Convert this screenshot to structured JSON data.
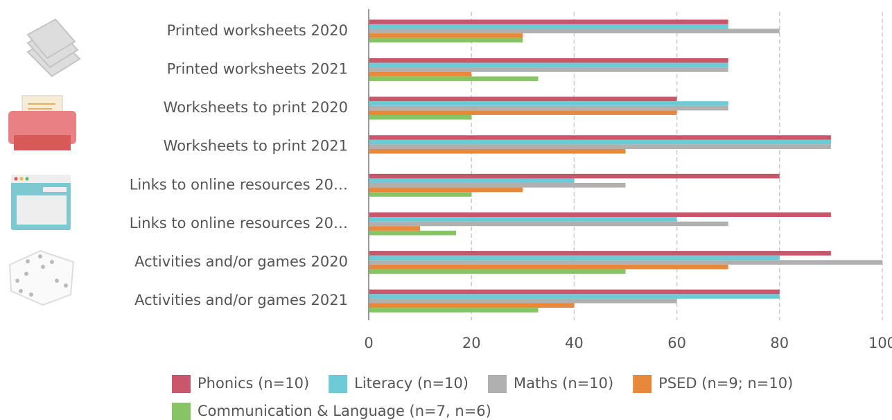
{
  "chart_data": {
    "type": "hbar",
    "categories": [
      "Printed worksheets 2020",
      "Printed worksheets 2021",
      "Worksheets to print 2020",
      "Worksheets to print 2021",
      "Links to online resources 20…",
      "Links to online resources 20…",
      "Activities and/or games 2020",
      "Activities and/or games 2021"
    ],
    "series": [
      {
        "name": "Phonics (n=10)",
        "color": "#c9566b",
        "values": [
          70,
          70,
          60,
          90,
          80,
          90,
          90,
          80
        ]
      },
      {
        "name": "Literacy (n=10)",
        "color": "#6ccbd6",
        "values": [
          70,
          70,
          70,
          90,
          40,
          60,
          80,
          80
        ]
      },
      {
        "name": "Maths (n=10)",
        "color": "#b0b0b0",
        "values": [
          80,
          70,
          70,
          90,
          50,
          70,
          100,
          60
        ]
      },
      {
        "name": "PSED (n=9; n=10)",
        "color": "#e8883a",
        "values": [
          30,
          20,
          60,
          50,
          30,
          10,
          70,
          40
        ]
      },
      {
        "name": "Communication & Language (n=7, n=6)",
        "color": "#86c465",
        "values": [
          30,
          33,
          20,
          null,
          20,
          17,
          50,
          33
        ]
      }
    ],
    "xlim": [
      0,
      100
    ],
    "xticks": [
      0,
      20,
      40,
      60,
      80,
      100
    ],
    "grid": true
  }
}
